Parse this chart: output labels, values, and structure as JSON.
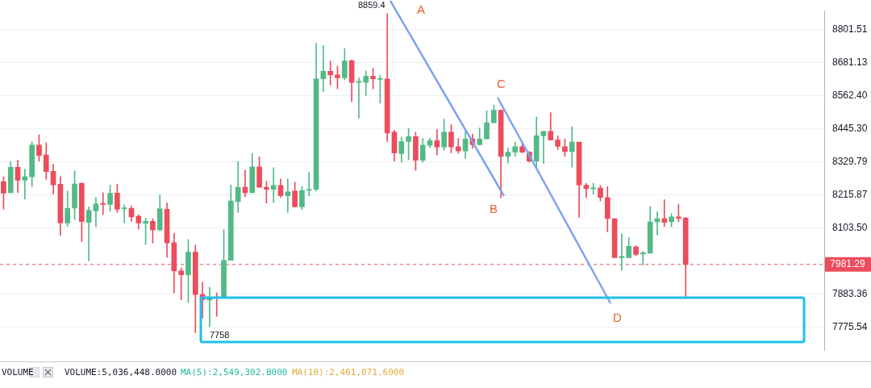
{
  "chart_data": {
    "type": "candlestick",
    "categories": [
      null,
      null,
      null,
      null,
      null,
      null,
      null,
      null,
      null,
      null,
      null,
      null,
      null,
      null,
      null,
      null,
      null,
      null,
      null,
      null,
      null,
      null,
      null,
      null,
      null,
      null,
      null,
      null,
      null,
      null,
      null,
      null,
      null,
      null,
      null,
      null,
      null,
      null,
      null,
      null,
      null,
      null,
      null,
      null,
      null,
      null,
      null,
      null,
      null,
      null,
      null,
      null,
      null,
      null,
      null,
      null,
      null,
      null,
      null,
      null,
      null,
      null,
      null,
      null,
      null,
      null,
      null,
      null,
      null,
      null,
      null,
      null,
      null,
      null,
      null,
      null,
      null,
      null,
      null,
      null,
      null,
      null,
      null,
      null,
      null,
      null,
      null,
      null,
      null,
      null,
      null,
      null,
      null,
      null,
      null,
      null,
      null,
      null,
      null,
      null,
      null,
      null,
      null,
      null,
      null,
      null,
      null,
      null,
      null,
      null,
      null,
      null,
      null,
      null,
      null,
      null
    ],
    "ohlc": [
      [
        8261,
        8278,
        8167,
        8222
      ],
      [
        8223,
        8330,
        8223,
        8311
      ],
      [
        8311,
        8335,
        8224,
        8266
      ],
      [
        8266,
        8304,
        8201,
        8278
      ],
      [
        8278,
        8400,
        8244,
        8388
      ],
      [
        8388,
        8424,
        8332,
        8352
      ],
      [
        8353,
        8396,
        8269,
        8296
      ],
      [
        8297,
        8321,
        8219,
        8250
      ],
      [
        8252,
        8278,
        8078,
        8120
      ],
      [
        8120,
        8229,
        8109,
        8170
      ],
      [
        8171,
        8298,
        8131,
        8253
      ],
      [
        8255,
        8257,
        8058,
        8125
      ],
      [
        8122,
        8175,
        7993,
        8163
      ],
      [
        8161,
        8207,
        8107,
        8185
      ],
      [
        8187,
        8223,
        8148,
        8183
      ],
      [
        8183,
        8249,
        8160,
        8221
      ],
      [
        8222,
        8252,
        8156,
        8167
      ],
      [
        8168,
        8182,
        8120,
        8172
      ],
      [
        8170,
        8178,
        8126,
        8141
      ],
      [
        8143,
        8148,
        8099,
        8120
      ],
      [
        8119,
        8137,
        8048,
        8126
      ],
      [
        8126,
        8135,
        8053,
        8097
      ],
      [
        8097,
        8216,
        8093,
        8168
      ],
      [
        8167,
        8188,
        8005,
        8053
      ],
      [
        8054,
        8086,
        7888,
        7960
      ],
      [
        7960,
        7970,
        7865,
        7947
      ],
      [
        7947,
        8065,
        7856,
        8022
      ],
      [
        8022,
        8046,
        7758,
        7882
      ],
      [
        7882,
        7923,
        7805,
        7865
      ],
      [
        7864,
        7906,
        7777,
        7872
      ],
      [
        7874,
        7888,
        7811,
        7870
      ],
      [
        7872,
        8098,
        7872,
        7995
      ],
      [
        7995,
        8250,
        7995,
        8195
      ],
      [
        8193,
        8330,
        8156,
        8242
      ],
      [
        8242,
        8300,
        8209,
        8223
      ],
      [
        8223,
        8359,
        8223,
        8312
      ],
      [
        8312,
        8347,
        8242,
        8242
      ],
      [
        8242,
        8263,
        8188,
        8235
      ],
      [
        8235,
        8309,
        8190,
        8248
      ],
      [
        8248,
        8270,
        8207,
        8213
      ],
      [
        8213,
        8270,
        8156,
        8226
      ],
      [
        8229,
        8259,
        8175,
        8175
      ],
      [
        8175,
        8244,
        8165,
        8231
      ],
      [
        8231,
        8294,
        8212,
        8235
      ],
      [
        8235,
        8751,
        8229,
        8622
      ],
      [
        8622,
        8742,
        8577,
        8649
      ],
      [
        8649,
        8686,
        8600,
        8636
      ],
      [
        8636,
        8668,
        8586,
        8626
      ],
      [
        8626,
        8731,
        8618,
        8686
      ],
      [
        8687,
        8690,
        8541,
        8609
      ],
      [
        8609,
        8625,
        8482,
        8613
      ],
      [
        8609,
        8651,
        8562,
        8631
      ],
      [
        8631,
        8660,
        8586,
        8622
      ],
      [
        8620,
        8635,
        8535,
        8623
      ],
      [
        8622,
        8859.4,
        8400,
        8430
      ],
      [
        8433,
        8440,
        8332,
        8360
      ],
      [
        8358,
        8416,
        8328,
        8400
      ],
      [
        8400,
        8446,
        8337,
        8417
      ],
      [
        8417,
        8433,
        8300,
        8335
      ],
      [
        8335,
        8411,
        8328,
        8387
      ],
      [
        8387,
        8411,
        8379,
        8403
      ],
      [
        8403,
        8443,
        8353,
        8381
      ],
      [
        8381,
        8479,
        8370,
        8433
      ],
      [
        8433,
        8459,
        8361,
        8381
      ],
      [
        8382,
        8411,
        8359,
        8367
      ],
      [
        8367,
        8437,
        8341,
        8409
      ],
      [
        8409,
        8426,
        8376,
        8389
      ],
      [
        8389,
        8448,
        8388,
        8409
      ],
      [
        8409,
        8508,
        8409,
        8466
      ],
      [
        8466,
        8528,
        8466,
        8510
      ],
      [
        8510,
        8512,
        8206,
        8348
      ],
      [
        8348,
        8378,
        8326,
        8363
      ],
      [
        8363,
        8398,
        8348,
        8382
      ],
      [
        8382,
        8395,
        8361,
        8363
      ],
      [
        8363,
        8365,
        8328,
        8332
      ],
      [
        8332,
        8486,
        8311,
        8420
      ],
      [
        8420,
        8436,
        8324,
        8436
      ],
      [
        8436,
        8502,
        8405,
        8405
      ],
      [
        8405,
        8420,
        8372,
        8383
      ],
      [
        8382,
        8409,
        8348,
        8365
      ],
      [
        8365,
        8451,
        8311,
        8398
      ],
      [
        8398,
        8398,
        8139,
        8249
      ],
      [
        8249,
        8255,
        8207,
        8237
      ],
      [
        8237,
        8255,
        8218,
        8239
      ],
      [
        8239,
        8248,
        8195,
        8207
      ],
      [
        8207,
        8244,
        8090,
        8135
      ],
      [
        8135,
        8135,
        8004,
        8004
      ],
      [
        8004,
        8084,
        7962,
        8008
      ],
      [
        8004,
        8071,
        8004,
        8042
      ],
      [
        8040,
        8044,
        8010,
        8015
      ],
      [
        8016,
        8025,
        7979,
        8020
      ],
      [
        8019,
        8176,
        8019,
        8124
      ],
      [
        8124,
        8158,
        8080,
        8135
      ],
      [
        8135,
        8199,
        8109,
        8122
      ],
      [
        8124,
        8152,
        8107,
        8141
      ],
      [
        8141,
        8184,
        8124,
        8136
      ],
      [
        8137,
        8139,
        7876,
        7981.29
      ],
      null,
      null,
      null,
      null,
      null,
      null,
      null,
      null,
      null,
      null,
      null,
      null,
      null,
      null,
      null,
      null,
      null,
      null,
      null
    ],
    "colors": [
      "#eb4d5c",
      "#53b987",
      "#eb4d5c",
      "#53b987",
      "#53b987",
      "#eb4d5c",
      "#eb4d5c",
      "#eb4d5c",
      "#eb4d5c",
      "#53b987",
      "#53b987",
      "#eb4d5c",
      "#53b987",
      "#53b987",
      "#eb4d5c",
      "#53b987",
      "#eb4d5c",
      "#53b987",
      "#eb4d5c",
      "#eb4d5c",
      "#53b987",
      "#eb4d5c",
      "#53b987",
      "#eb4d5c",
      "#eb4d5c",
      "#eb4d5c",
      "#53b987",
      "#eb4d5c",
      "#eb4d5c",
      "#53b987",
      "#eb4d5c",
      "#53b987",
      "#53b987",
      "#53b987",
      "#eb4d5c",
      "#53b987",
      "#eb4d5c",
      "#eb4d5c",
      "#53b987",
      "#eb4d5c",
      "#53b987",
      "#eb4d5c",
      "#53b987",
      "#53b987",
      "#53b987",
      "#53b987",
      "#eb4d5c",
      "#eb4d5c",
      "#53b987",
      "#eb4d5c",
      "#53b987",
      "#53b987",
      "#eb4d5c",
      "#53b987",
      "#eb4d5c",
      "#eb4d5c",
      "#53b987",
      "#53b987",
      "#eb4d5c",
      "#53b987",
      "#53b987",
      "#eb4d5c",
      "#53b987",
      "#eb4d5c",
      "#eb4d5c",
      "#53b987",
      "#eb4d5c",
      "#53b987",
      "#53b987",
      "#53b987",
      "#eb4d5c",
      "#53b987",
      "#53b987",
      "#eb4d5c",
      "#eb4d5c",
      "#53b987",
      "#53b987",
      "#eb4d5c",
      "#eb4d5c",
      "#eb4d5c",
      "#53b987",
      "#eb4d5c",
      "#eb4d5c",
      "#53b987",
      "#eb4d5c",
      "#eb4d5c",
      "#eb4d5c",
      "#53b987",
      "#53b987",
      "#eb4d5c",
      "#53b987",
      "#53b987",
      "#53b987",
      "#eb4d5c",
      "#53b987",
      "#eb4d5c",
      "#eb4d5c",
      null,
      null,
      null,
      null,
      null,
      null,
      null,
      null,
      null,
      null,
      null,
      null,
      null,
      null,
      null,
      null,
      null,
      null,
      null
    ],
    "log": "y",
    "ylim": [
      7700,
      8870
    ],
    "yticks": [
      {
        "value": 7775.54,
        "label": "7775.54"
      },
      {
        "value": 7883.36,
        "label": "7883.36"
      },
      {
        "value": 8103.5,
        "label": "8103.50"
      },
      {
        "value": 8215.87,
        "label": "8215.87"
      },
      {
        "value": 8329.79,
        "label": "8329.79"
      },
      {
        "value": 8445.3,
        "label": "8445.30"
      },
      {
        "value": 8562.4,
        "label": "8562.40"
      },
      {
        "value": 8681.13,
        "label": "8681.13"
      },
      {
        "value": 8801.51,
        "label": "8801.51"
      }
    ],
    "tick_labels": "y",
    "grid": "y",
    "ref_lines": [
      {
        "axis": "y",
        "value": 7981.29,
        "label": "7981.29",
        "color": "#eb4d5c",
        "line_style": "dashed"
      }
    ],
    "annotations": [
      "8859.4",
      "7758",
      "A",
      "B",
      "C",
      "D",
      "VOLUME",
      "VOLUME:5,036,448.0000",
      "MA(5):2,549,302.8000",
      "MA(10):2,461,071.6000"
    ]
  }
}
